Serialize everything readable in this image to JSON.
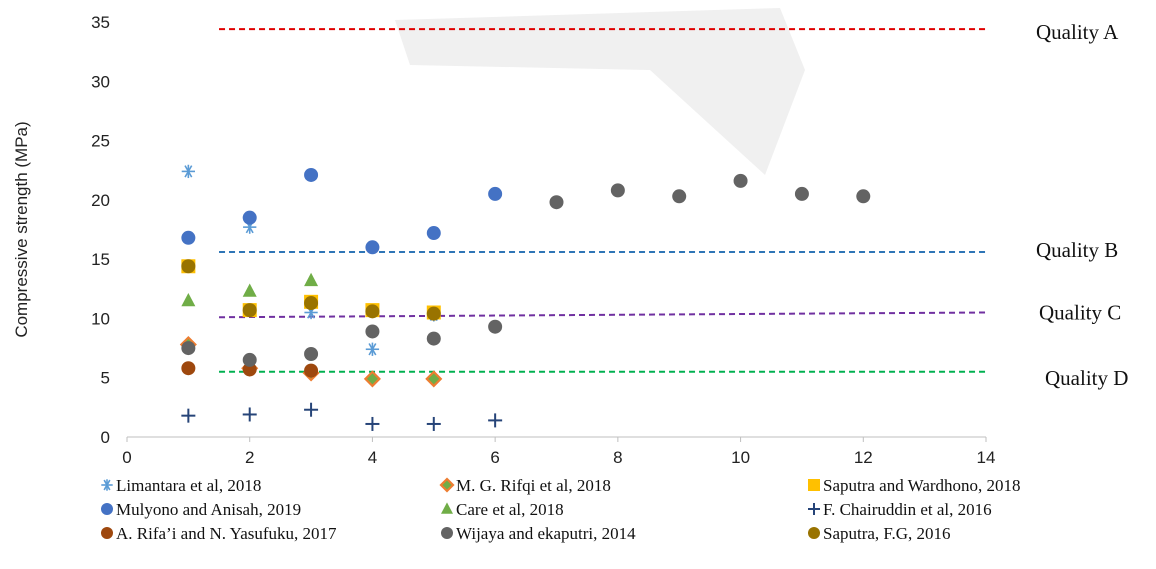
{
  "chart_data": {
    "type": "scatter",
    "title": "",
    "xlabel": "",
    "ylabel": "Compressive strength (MPa)",
    "xlim": [
      0,
      14
    ],
    "ylim": [
      0,
      35
    ],
    "xticks": [
      "0",
      "2",
      "4",
      "6",
      "8",
      "10",
      "12",
      "14"
    ],
    "yticks": [
      "0",
      "5",
      "10",
      "15",
      "20",
      "25",
      "30",
      "35"
    ],
    "grid": false,
    "legend_position": "bottom",
    "series": [
      {
        "name": "Limantara et al, 2018",
        "marker": "asterisk",
        "color": "#5b9bd5",
        "x": [
          1,
          2,
          3,
          4,
          5
        ],
        "y": [
          22.4,
          17.7,
          10.5,
          7.4,
          10.3
        ]
      },
      {
        "name": "M. G. Rifqi et al, 2018",
        "marker": "diamond",
        "color": "#ed7d31",
        "x": [
          1,
          2,
          3,
          4,
          5
        ],
        "y": [
          7.8,
          5.8,
          5.4,
          4.9,
          4.9
        ]
      },
      {
        "name": "Saputra and Wardhono, 2018",
        "marker": "square",
        "color": "#ffc000",
        "x": [
          1,
          2,
          3,
          4,
          5
        ],
        "y": [
          14.4,
          10.7,
          11.4,
          10.7,
          10.5
        ]
      },
      {
        "name": "Mulyono and Anisah, 2019",
        "marker": "circle",
        "color": "#4472c4",
        "x": [
          1,
          2,
          3,
          4,
          5,
          6
        ],
        "y": [
          16.8,
          18.5,
          22.1,
          16.0,
          17.2,
          20.5
        ]
      },
      {
        "name": "Care et al, 2018",
        "marker": "triangle",
        "color": "#70ad47",
        "x": [
          1,
          2,
          3
        ],
        "y": [
          11.5,
          12.3,
          13.2
        ]
      },
      {
        "name": "F. Chairuddin et al, 2016",
        "marker": "plus",
        "color": "#264478",
        "x": [
          1,
          2,
          3,
          4,
          5,
          6
        ],
        "y": [
          1.8,
          1.9,
          2.3,
          1.1,
          1.1,
          1.4
        ]
      },
      {
        "name": "A. Rifa’i and N. Yasufuku, 2017",
        "marker": "circle",
        "color": "#9e480e",
        "x": [
          1,
          2,
          3
        ],
        "y": [
          5.8,
          5.7,
          5.6
        ]
      },
      {
        "name": "Wijaya and ekaputri, 2014",
        "marker": "circle",
        "color": "#636363",
        "x": [
          1,
          2,
          3,
          4,
          5,
          6,
          7,
          8,
          9,
          10,
          11,
          12
        ],
        "y": [
          7.5,
          6.5,
          7.0,
          8.9,
          8.3,
          9.3,
          19.8,
          20.8,
          20.3,
          21.6,
          20.5,
          20.3
        ]
      },
      {
        "name": "Saputra, F.G, 2016",
        "marker": "circle",
        "color": "#997300",
        "x": [
          1,
          2,
          3,
          4,
          5
        ],
        "y": [
          14.4,
          10.7,
          11.3,
          10.6,
          10.4
        ]
      }
    ],
    "reference_lines": [
      {
        "label": "Quality A",
        "color": "#e00000",
        "x": [
          1.5,
          14
        ],
        "y": [
          34.4,
          34.4
        ]
      },
      {
        "label": "Quality B",
        "color": "#2e75b6",
        "x": [
          1.5,
          14
        ],
        "y": [
          15.6,
          15.6
        ]
      },
      {
        "label": "Quality C",
        "color": "#7030a0",
        "x": [
          1.5,
          14
        ],
        "y": [
          10.1,
          10.5
        ]
      },
      {
        "label": "Quality D",
        "color": "#00b050",
        "x": [
          1.5,
          14
        ],
        "y": [
          5.5,
          5.5
        ]
      }
    ]
  }
}
